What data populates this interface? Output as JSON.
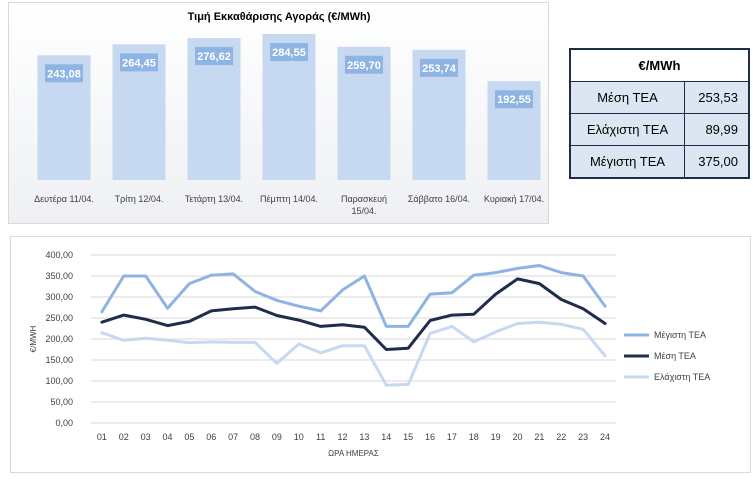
{
  "bar_panel": {
    "title": "Τιμή Εκκαθάρισης Αγοράς (€/MWh)"
  },
  "stats": {
    "header": "€/MWh",
    "rows": [
      {
        "label": "Μέση ΤΕΑ",
        "value": "253,53"
      },
      {
        "label": "Ελάχιστη ΤΕΑ",
        "value": "89,99"
      },
      {
        "label": "Μέγιστη ΤΕΑ",
        "value": "375,00"
      }
    ]
  },
  "colors": {
    "bar_fill": "#c6d9f1",
    "label_box": "#8eb4e3",
    "max_line": "#8eb4e3",
    "avg_line": "#1f2d4a",
    "min_line": "#c6d9f1"
  },
  "chart_data": [
    {
      "type": "bar",
      "title": "Τιμή Εκκαθάρισης Αγοράς (€/MWh)",
      "categories": [
        "Δευτέρα 11/04.",
        "Τρίτη 12/04.",
        "Τετάρτη 13/04.",
        "Πέμπτη 14/04.",
        "Παρασκευή 15/04.",
        "Σάββατο 16/04.",
        "Κυριακή 17/04."
      ],
      "values": [
        243.08,
        264.45,
        276.62,
        284.55,
        259.7,
        253.74,
        192.55
      ],
      "value_labels": [
        "243,08",
        "264,45",
        "276,62",
        "284,55",
        "259,70",
        "253,74",
        "192,55"
      ],
      "ylim": [
        0,
        300
      ]
    },
    {
      "type": "line",
      "xlabel": "ΩΡΑ ΗΜΕΡΑΣ",
      "ylabel": "€/MWH",
      "x": [
        "01",
        "02",
        "03",
        "04",
        "05",
        "06",
        "07",
        "08",
        "09",
        "10",
        "11",
        "12",
        "13",
        "14",
        "15",
        "16",
        "17",
        "18",
        "19",
        "20",
        "21",
        "22",
        "23",
        "24"
      ],
      "y_ticks": [
        "0,00",
        "50,00",
        "100,00",
        "150,00",
        "200,00",
        "250,00",
        "300,00",
        "350,00",
        "400,00"
      ],
      "ylim": [
        0,
        400
      ],
      "grid": true,
      "legend": "right",
      "series": [
        {
          "name": "Μέγιστη ΤΕΑ",
          "values": [
            265,
            350,
            350,
            273,
            332,
            352,
            355,
            313,
            292,
            278,
            267,
            317,
            350,
            230,
            230,
            307,
            310,
            352,
            358,
            368,
            375,
            358,
            350,
            278
          ]
        },
        {
          "name": "Μέση ΤΕΑ",
          "values": [
            240,
            257,
            247,
            232,
            242,
            267,
            272,
            276,
            256,
            245,
            230,
            234,
            228,
            175,
            178,
            244,
            257,
            259,
            307,
            343,
            332,
            294,
            272,
            237
          ]
        },
        {
          "name": "Ελάχιστη ΤΕΑ",
          "values": [
            215,
            197,
            202,
            197,
            191,
            193,
            192,
            192,
            142,
            188,
            167,
            184,
            184,
            90,
            92,
            213,
            230,
            193,
            217,
            237,
            240,
            235,
            223,
            160
          ]
        }
      ]
    }
  ]
}
